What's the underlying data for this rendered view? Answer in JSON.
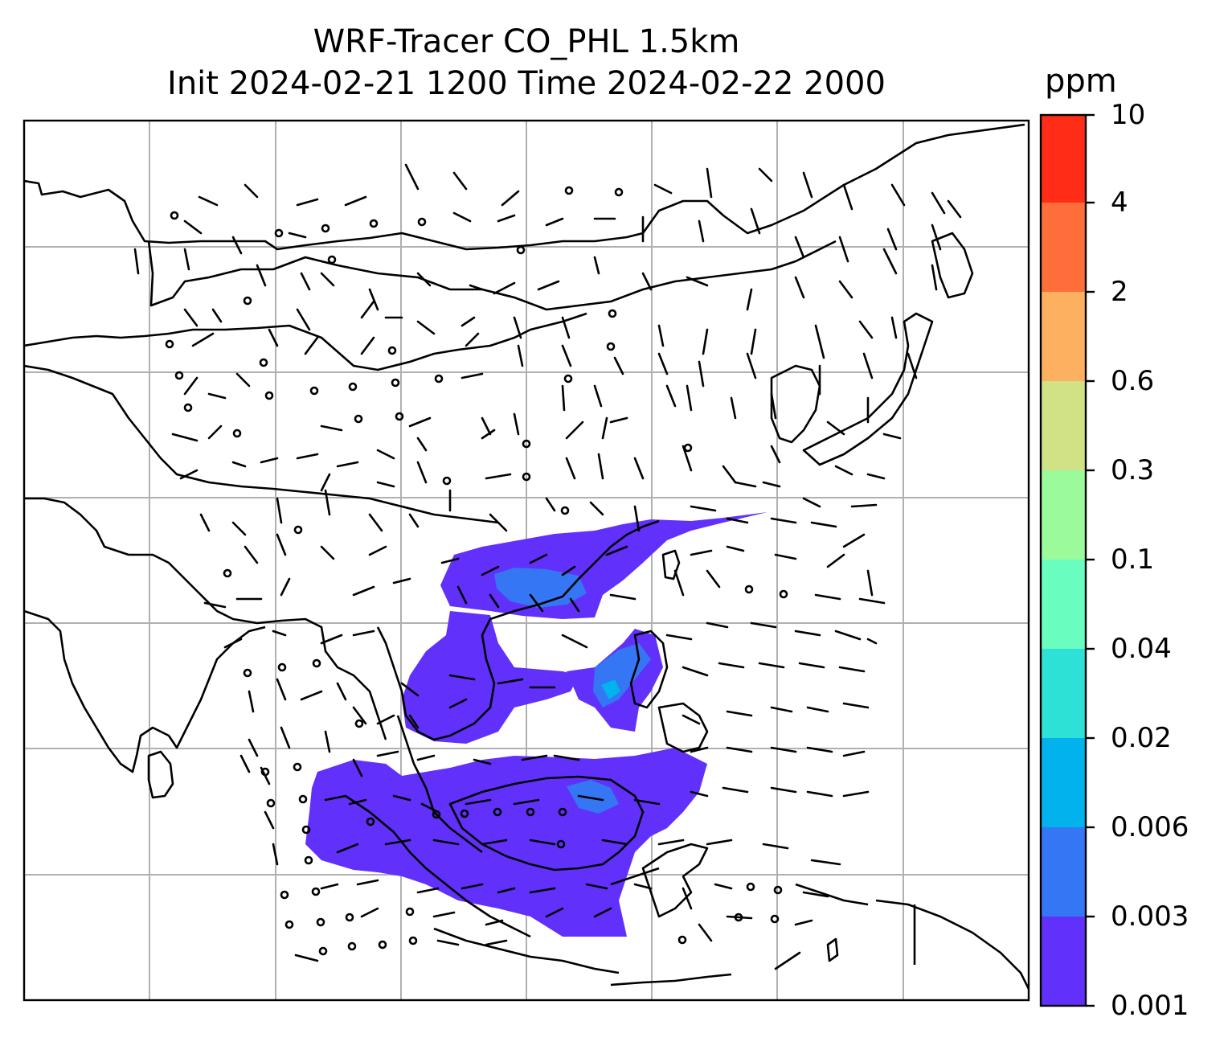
{
  "title": {
    "line1": "WRF-Tracer CO_PHL 1.5km",
    "line2": "Init 2024-02-21 1200 Time 2024-02-22 2000"
  },
  "colorbar": {
    "unit": "ppm",
    "tick_labels": [
      "0.001",
      "0.003",
      "0.006",
      "0.02",
      "0.04",
      "0.1",
      "0.3",
      "0.6",
      "2",
      "4",
      "10"
    ],
    "colors": [
      "#6230fb",
      "#3476f4",
      "#01b2ec",
      "#2ee1d6",
      "#6afdc0",
      "#9bfb9a",
      "#d0e186",
      "#fdb160",
      "#fe6e3b",
      "#ff2c17"
    ]
  },
  "map": {
    "gridlines": true,
    "tracer_field": "CO_PHL",
    "wind_barbs": true,
    "coastlines": true
  }
}
